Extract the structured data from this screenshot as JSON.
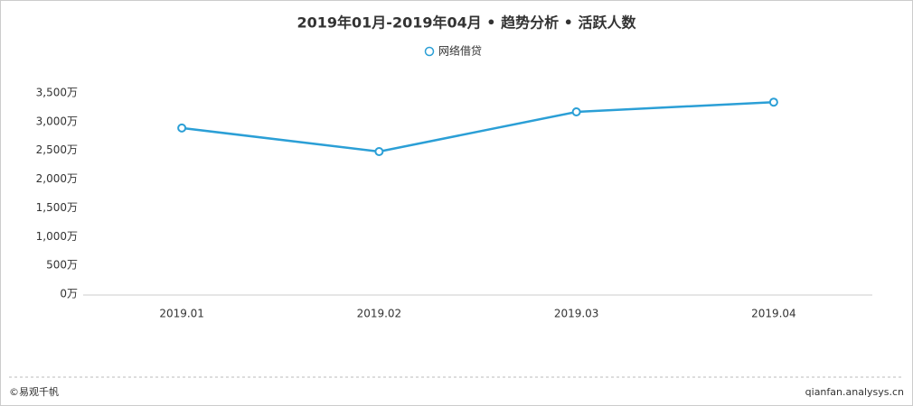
{
  "chart_data": {
    "type": "line",
    "title": "2019年01月-2019年04月 • 趋势分析 • 活跃人数",
    "categories": [
      "2019.01",
      "2019.02",
      "2019.03",
      "2019.04"
    ],
    "series": [
      {
        "name": "网络借贷",
        "color": "#2b9fd6",
        "values": [
          2890,
          2480,
          3170,
          3340
        ]
      }
    ],
    "ylim": [
      0,
      3500
    ],
    "yticks": [
      {
        "value": 0,
        "label": "0万"
      },
      {
        "value": 500,
        "label": "500万"
      },
      {
        "value": 1000,
        "label": "1,000万"
      },
      {
        "value": 1500,
        "label": "1,500万"
      },
      {
        "value": 2000,
        "label": "2,000万"
      },
      {
        "value": 2500,
        "label": "2,500万"
      },
      {
        "value": 3000,
        "label": "3,000万"
      },
      {
        "value": 3500,
        "label": "3,500万"
      }
    ],
    "grid": false
  },
  "footer": {
    "left": "©易观千帆",
    "right": "qianfan.analysys.cn"
  }
}
